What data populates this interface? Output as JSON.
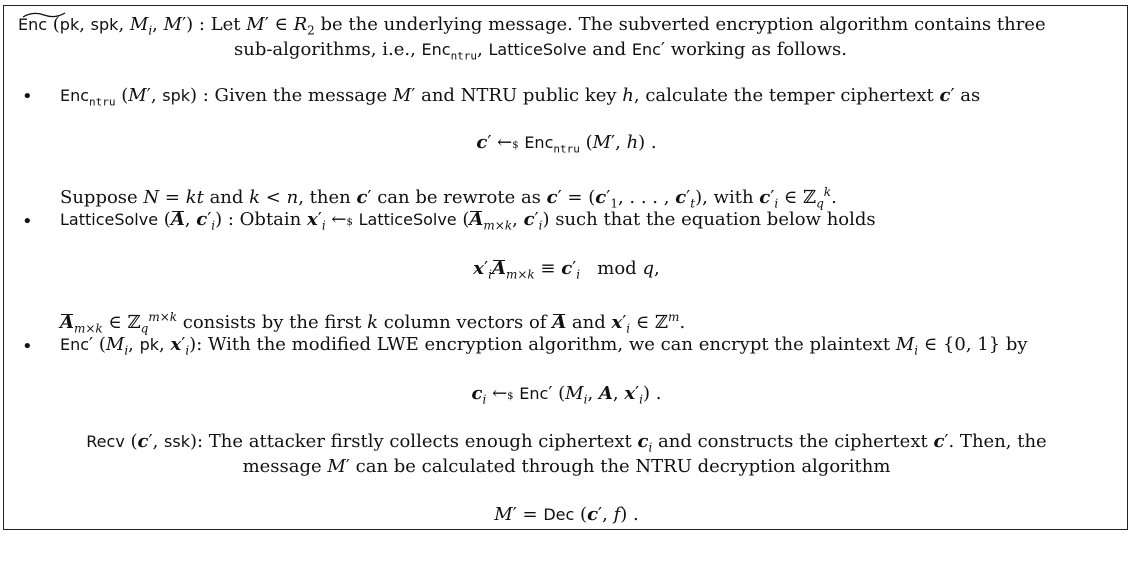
{
  "enc_heading": {
    "signature": "Enc (pk, spk, Mi, M′)",
    "line1": ": Let M′ ∈ R2 be the underlying message. The subverted encryption algorithm contains three",
    "line2": "sub-algorithms, i.e., Enc_ntru, LatticeSolve and Enc′ working as follows."
  },
  "bullets": [
    {
      "label": "Enc_ntru (M′, spk)",
      "text": ": Given the message M′ and NTRU public key h, calculate the temper ciphertext c′ as",
      "equation": "c′ ←$ Enc_ntru (M′, h) .",
      "note": "Suppose N = kt and k < n, then c′ can be rewrote as c′ = (c′1, . . . , c′t), with c′i ∈ Z_q^k."
    },
    {
      "label": "LatticeSolve (Ā, c′i)",
      "text": ": Obtain x′i ←$ LatticeSolve (Ā_{m×k}, c′i) such that the equation below holds",
      "equation": "x′i Ā_{m×k} ≡ c′i  mod q,",
      "note": "Ā_{m×k} ∈ Z_q^{m×k} consists by the first k column vectors of Ā and x′i ∈ Z^m."
    },
    {
      "label": "Enc′ (Mi, pk, x′i)",
      "text": ": With the modified LWE encryption algorithm, we can encrypt the plaintext Mi ∈ {0, 1} by",
      "equation": "ci ←$ Enc′ (Mi, A, x′i) ."
    }
  ],
  "recv": {
    "line1": "Recv (c′, ssk): The attacker firstly collects enough ciphertext ci and constructs the ciphertext c′. Then, the",
    "line2": "message M′ can be calculated through the NTRU decryption algorithm",
    "equation": "M′ = Dec (c′, f) ."
  }
}
